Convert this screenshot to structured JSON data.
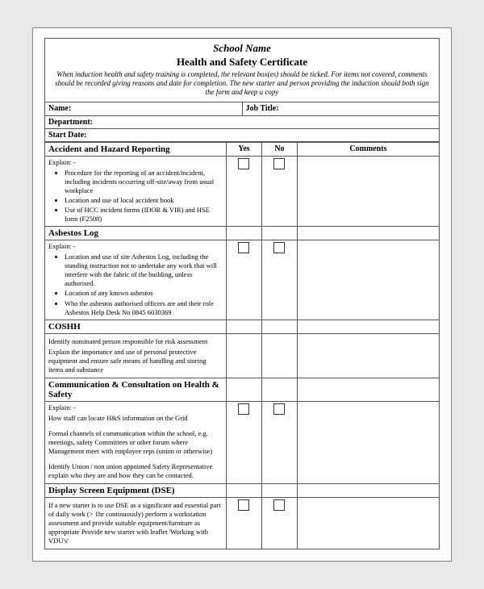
{
  "header": {
    "school": "School Name",
    "title": "Health and Safety Certificate",
    "instructions": "When induction health and safety training is completed, the relevant box(es) should be ticked. For items not covered, comments should be recorded giving reasons and date for completion. The new starter and person providing the induction should both sign the form and keep a copy"
  },
  "meta": {
    "name_label": "Name:",
    "jobtitle_label": "Job Title:",
    "department_label": "Department:",
    "startdate_label": "Start Date:"
  },
  "cols": {
    "yes": "Yes",
    "no": "No",
    "comments": "Comments"
  },
  "sections": [
    {
      "title": "Accident and Hazard Reporting",
      "explain": "Explain: -",
      "bullets": [
        "Procedure for the reporting of an accident/incident, including incidents occurring off-site/away from usual workplace",
        "Location and use of local accident book",
        "Use of HCC incident forms (IDOR & VIR) and HSE form (F2508)"
      ],
      "check": true
    },
    {
      "title": "Asbestos Log",
      "explain": "Explain: -",
      "bullets": [
        "Location and use of site Asbestos Log, including the standing instruction not to undertake any work that will interfere with the fabric of the building, unless authorised.",
        "Location of any known asbestos",
        "Who the asbestos authorised officers are and their role Asbestos Help Desk No 0845 6030369"
      ],
      "check": true
    },
    {
      "title": "COSHH",
      "paras": [
        "Identify nominated person responsible for risk assessment",
        "Explain the importance and use of personal protective equipment and ensure safe means of handling and storing items and substance"
      ],
      "check": false
    },
    {
      "title": "Communication & Consultation on Health & Safety",
      "explain": "Explain: -",
      "paras": [
        "How staff can locate H&S information on the Grid",
        "Formal channels of communication within the school, e.g. meetings, safety Committees or other forum where Management meet with employee reps (union or otherwise)",
        "Identify Union / non union appointed Safety Representative explain who they are and how they can be contacted."
      ],
      "check": true
    },
    {
      "title": "Display Screen Equipment (DSE)",
      "paras": [
        "If a new starter is to use DSE as a significant and essential part of daily work (> 1hr continuously) perform a workstation assessment and provide suitable equipment/furniture as appropriate Provide new starter with leaflet 'Working with VDU's'"
      ],
      "check": true
    }
  ]
}
